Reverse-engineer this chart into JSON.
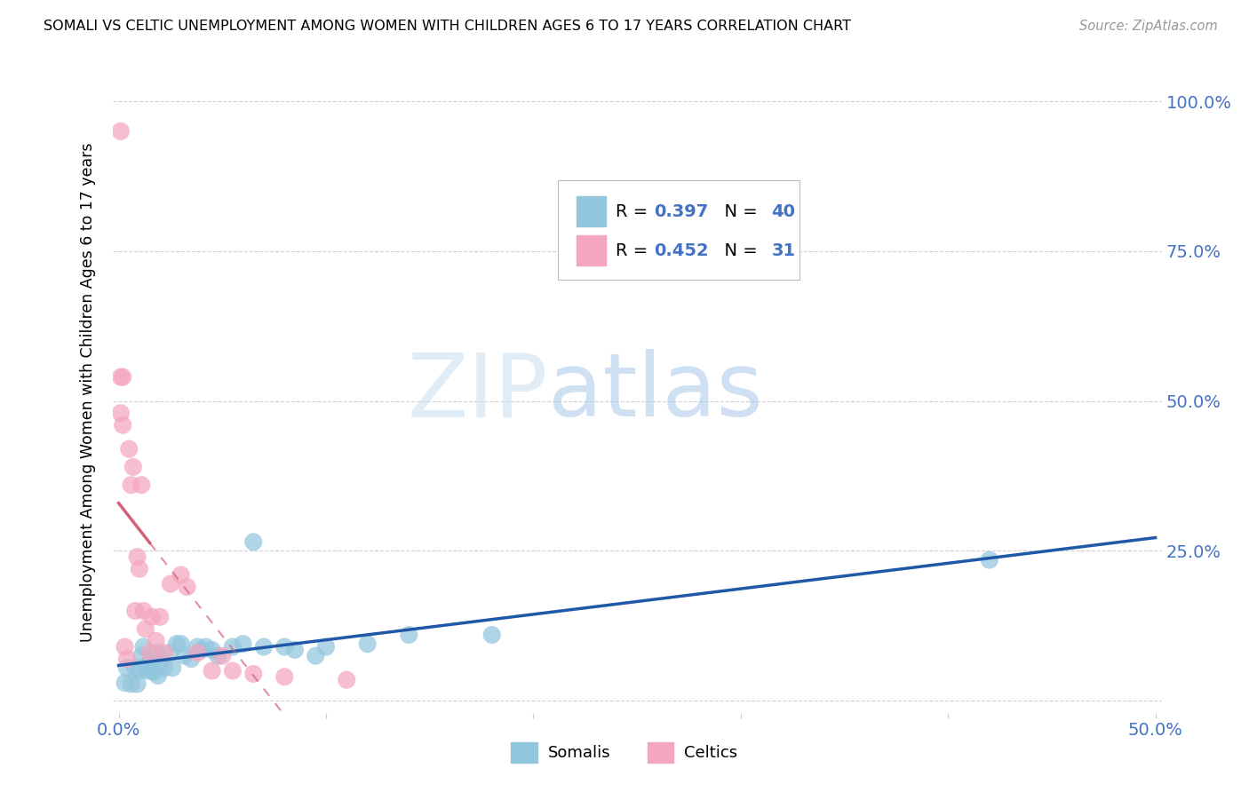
{
  "title": "SOMALI VS CELTIC UNEMPLOYMENT AMONG WOMEN WITH CHILDREN AGES 6 TO 17 YEARS CORRELATION CHART",
  "source": "Source: ZipAtlas.com",
  "ylabel": "Unemployment Among Women with Children Ages 6 to 17 years",
  "xlim": [
    -0.003,
    0.503
  ],
  "ylim": [
    -0.02,
    1.05
  ],
  "somali_color": "#92c5de",
  "celtic_color": "#f4a6be",
  "somali_line_color": "#2058a8",
  "celtic_line_color": "#d4607a",
  "legend_r_somali": "0.397",
  "legend_n_somali": "40",
  "legend_r_celtic": "0.452",
  "legend_n_celtic": "31",
  "tick_color": "#4472C4",
  "grid_color": "#cccccc",
  "background_color": "#ffffff",
  "somali_points_x": [
    0.003,
    0.004,
    0.006,
    0.008,
    0.009,
    0.01,
    0.011,
    0.012,
    0.013,
    0.014,
    0.015,
    0.016,
    0.017,
    0.018,
    0.019,
    0.02,
    0.022,
    0.025,
    0.026,
    0.028,
    0.03,
    0.032,
    0.035,
    0.038,
    0.04,
    0.042,
    0.045,
    0.048,
    0.055,
    0.06,
    0.065,
    0.07,
    0.08,
    0.085,
    0.095,
    0.1,
    0.12,
    0.14,
    0.18,
    0.42
  ],
  "somali_points_y": [
    0.03,
    0.055,
    0.028,
    0.055,
    0.028,
    0.05,
    0.075,
    0.09,
    0.055,
    0.05,
    0.065,
    0.05,
    0.048,
    0.08,
    0.042,
    0.065,
    0.055,
    0.08,
    0.055,
    0.095,
    0.095,
    0.075,
    0.07,
    0.09,
    0.085,
    0.09,
    0.085,
    0.075,
    0.09,
    0.095,
    0.265,
    0.09,
    0.09,
    0.085,
    0.075,
    0.09,
    0.095,
    0.11,
    0.11,
    0.235
  ],
  "celtic_points_x": [
    0.001,
    0.001,
    0.001,
    0.002,
    0.002,
    0.003,
    0.004,
    0.005,
    0.006,
    0.007,
    0.008,
    0.009,
    0.01,
    0.011,
    0.012,
    0.013,
    0.015,
    0.016,
    0.018,
    0.02,
    0.022,
    0.025,
    0.03,
    0.033,
    0.038,
    0.045,
    0.05,
    0.055,
    0.065,
    0.08,
    0.11
  ],
  "celtic_points_y": [
    0.95,
    0.54,
    0.48,
    0.46,
    0.54,
    0.09,
    0.07,
    0.42,
    0.36,
    0.39,
    0.15,
    0.24,
    0.22,
    0.36,
    0.15,
    0.12,
    0.08,
    0.14,
    0.1,
    0.14,
    0.08,
    0.195,
    0.21,
    0.19,
    0.08,
    0.05,
    0.075,
    0.05,
    0.045,
    0.04,
    0.035
  ]
}
